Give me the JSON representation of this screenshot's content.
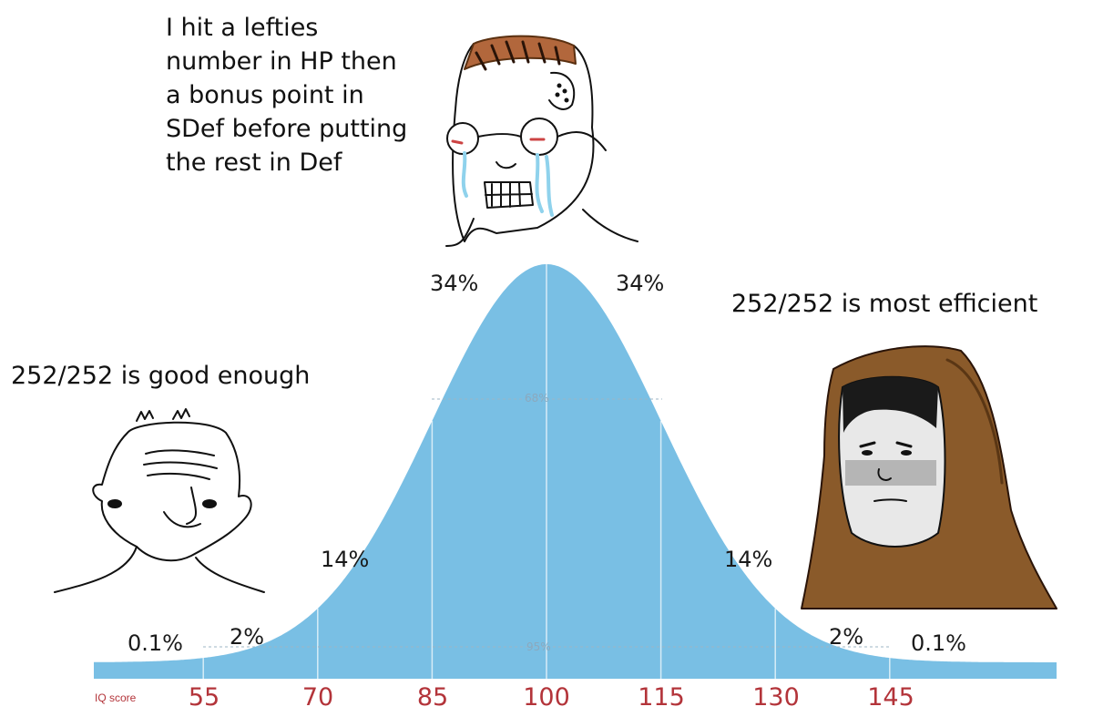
{
  "captions": {
    "top_lines": [
      "I hit a lefties",
      "number in HP then",
      "a bonus point in",
      "SDef before putting",
      "the rest in Def"
    ],
    "left": "252/252 is good enough",
    "right": "252/252 is most efficient"
  },
  "chart_data": {
    "type": "area",
    "xlabel": "IQ score",
    "ticks": [
      "55",
      "70",
      "85",
      "100",
      "115",
      "130",
      "145"
    ],
    "mean": 100,
    "sd": 15,
    "band_percentages": [
      "0.1%",
      "2%",
      "14%",
      "34%",
      "34%",
      "14%",
      "2%",
      "0.1%"
    ],
    "inner_labels": [
      "68%",
      "95%"
    ],
    "fill_color": "#79bfe4"
  },
  "characters": [
    {
      "id": "crying-glasses-wojak",
      "position": "top-center"
    },
    {
      "id": "smiling-brainlet-wojak",
      "position": "left"
    },
    {
      "id": "hooded-monk-wojak",
      "position": "right"
    }
  ]
}
